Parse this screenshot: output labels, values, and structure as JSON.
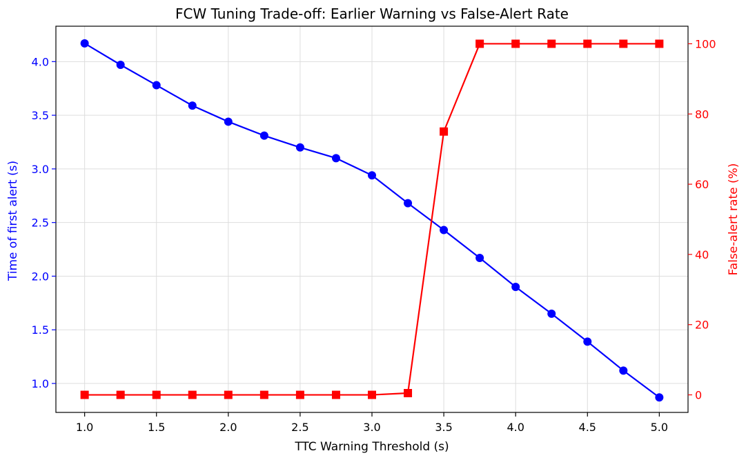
{
  "chart_data": {
    "type": "line",
    "title": "FCW Tuning Trade-off: Earlier Warning vs False-Alert Rate",
    "xlabel": "TTC Warning Threshold (s)",
    "ylabel_left": "Time of first alert (s)",
    "ylabel_right": "False-alert rate (%)",
    "xlim": [
      0.8,
      5.2
    ],
    "ylim_left": [
      0.73,
      4.33
    ],
    "ylim_right": [
      -5,
      105
    ],
    "x_ticks": [
      "1.0",
      "1.5",
      "2.0",
      "2.5",
      "3.0",
      "3.5",
      "4.0",
      "4.5",
      "5.0"
    ],
    "y_left_ticks": [
      "1.0",
      "1.5",
      "2.0",
      "2.5",
      "3.0",
      "3.5",
      "4.0"
    ],
    "y_right_ticks": [
      "0",
      "20",
      "40",
      "60",
      "80",
      "100"
    ],
    "grid": true,
    "x": [
      1.0,
      1.25,
      1.5,
      1.75,
      2.0,
      2.25,
      2.5,
      2.75,
      3.0,
      3.25,
      3.5,
      3.75,
      4.0,
      4.25,
      4.5,
      4.75,
      5.0
    ],
    "series": [
      {
        "axis": "left",
        "color": "#0000ff",
        "marker": "circle",
        "values": [
          4.17,
          3.97,
          3.78,
          3.59,
          3.44,
          3.31,
          3.2,
          3.1,
          2.94,
          2.68,
          2.43,
          2.17,
          1.9,
          1.65,
          1.39,
          1.12,
          0.87
        ]
      },
      {
        "axis": "right",
        "color": "#ff0000",
        "marker": "square",
        "values": [
          0,
          0,
          0,
          0,
          0,
          0,
          0,
          0,
          0,
          0.5,
          75,
          100,
          100,
          100,
          100,
          100,
          100
        ]
      }
    ],
    "left_axis_color": "#0000ff",
    "right_axis_color": "#ff0000"
  }
}
